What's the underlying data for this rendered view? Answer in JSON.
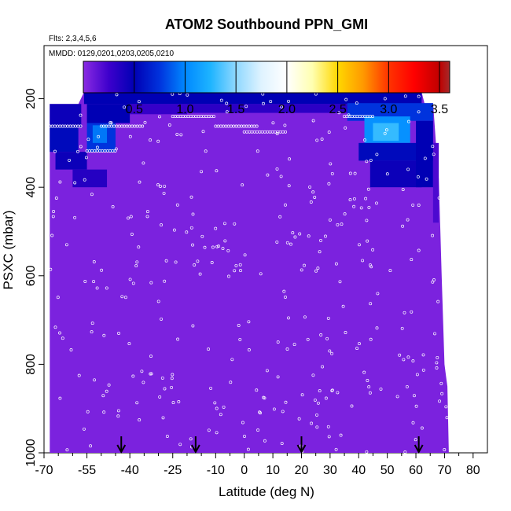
{
  "chart_data": {
    "type": "heatmap",
    "title": "ATOM2 Southbound PPN_GMI",
    "subtitle_flights": "Flts: 2,3,4,5,6",
    "subtitle_dates": "MMDD: 0129,0201,0203,0205,0210",
    "xlabel": "Latitude (deg N)",
    "ylabel": "PSXC (mbar)",
    "xlim": [
      -70,
      85
    ],
    "ylim": [
      1000,
      80
    ],
    "x_ticks": [
      -70,
      -55,
      -40,
      -25,
      -10,
      0,
      10,
      20,
      30,
      40,
      50,
      60,
      70,
      80
    ],
    "x_tick_labels": [
      "-70",
      "-55",
      "-40",
      "-25",
      "-10",
      "0",
      "10",
      "20",
      "30",
      "40",
      "50",
      "60",
      "70",
      "80"
    ],
    "x_minor_ticks": [
      -65,
      -60,
      -50,
      -45,
      -35,
      -30,
      -20,
      -15,
      -5,
      5,
      15,
      25,
      35,
      45,
      55,
      65,
      75
    ],
    "y_ticks": [
      200,
      400,
      600,
      800,
      1000
    ],
    "y_tick_labels": [
      "200",
      "400",
      "600",
      "800",
      "1000"
    ],
    "colorbar": {
      "min": 0,
      "max": 3.6,
      "ticks": [
        0.5,
        1.0,
        1.5,
        2.0,
        2.5,
        3.0,
        3.5
      ],
      "tick_labels": [
        "0.5",
        "1.0",
        "1.5",
        "2.0",
        "2.5",
        "3.0",
        "3.5"
      ],
      "stops": [
        {
          "value": 0.0,
          "color": "#8a2be2"
        },
        {
          "value": 0.25,
          "color": "#3d00cc"
        },
        {
          "value": 0.5,
          "color": "#0000b4"
        },
        {
          "value": 0.75,
          "color": "#0033dd"
        },
        {
          "value": 1.0,
          "color": "#0088ff"
        },
        {
          "value": 1.25,
          "color": "#1eb4ff"
        },
        {
          "value": 1.5,
          "color": "#8fd8ff"
        },
        {
          "value": 1.75,
          "color": "#dff3ff"
        },
        {
          "value": 2.0,
          "color": "#ffffff"
        },
        {
          "value": 2.25,
          "color": "#ffffb0"
        },
        {
          "value": 2.5,
          "color": "#ffd700"
        },
        {
          "value": 2.75,
          "color": "#ff9900"
        },
        {
          "value": 3.0,
          "color": "#ff3300"
        },
        {
          "value": 3.25,
          "color": "#ff0000"
        },
        {
          "value": 3.5,
          "color": "#c00000"
        },
        {
          "value": 3.6,
          "color": "#a52a2a"
        }
      ]
    },
    "base_value": 0.05,
    "data_top_pressure": [
      {
        "lat": -68,
        "p": 212
      },
      {
        "lat": -58,
        "p": 212
      },
      {
        "lat": -56,
        "p": 185
      },
      {
        "lat": 62,
        "p": 185
      },
      {
        "lat": 63,
        "p": 210
      },
      {
        "lat": 66,
        "p": 210
      },
      {
        "lat": 67,
        "p": 300
      },
      {
        "lat": 68,
        "p": 380
      },
      {
        "lat": 69,
        "p": 600
      },
      {
        "lat": 70,
        "p": 800
      },
      {
        "lat": 71,
        "p": 850
      },
      {
        "lat": 71.5,
        "p": 1000
      }
    ],
    "west_edge_lat": -68,
    "features": [
      {
        "lat_min": -68,
        "lat_max": -57,
        "p_min": 212,
        "p_max": 265,
        "value": 0.45
      },
      {
        "lat_min": -68,
        "lat_max": -58,
        "p_min": 265,
        "p_max": 320,
        "value": 0.55
      },
      {
        "lat_min": -66,
        "lat_max": -55,
        "p_min": 320,
        "p_max": 360,
        "value": 0.45
      },
      {
        "lat_min": -60,
        "lat_max": -48,
        "p_min": 360,
        "p_max": 400,
        "value": 0.35
      },
      {
        "lat_min": -55,
        "lat_max": -40,
        "p_min": 212,
        "p_max": 255,
        "value": 0.5
      },
      {
        "lat_min": -55,
        "lat_max": -45,
        "p_min": 255,
        "p_max": 320,
        "value": 0.75
      },
      {
        "lat_min": -53,
        "lat_max": -48,
        "p_min": 260,
        "p_max": 300,
        "value": 0.95
      },
      {
        "lat_min": -56,
        "lat_max": 62,
        "p_min": 185,
        "p_max": 212,
        "value": 0.5
      },
      {
        "lat_min": -40,
        "lat_max": -20,
        "p_min": 212,
        "p_max": 235,
        "value": 0.28
      },
      {
        "lat_min": -20,
        "lat_max": 40,
        "p_min": 212,
        "p_max": 232,
        "value": 0.32
      },
      {
        "lat_min": 36,
        "lat_max": 66,
        "p_min": 210,
        "p_max": 250,
        "value": 0.75
      },
      {
        "lat_min": 42,
        "lat_max": 58,
        "p_min": 240,
        "p_max": 300,
        "value": 1.05
      },
      {
        "lat_min": 45,
        "lat_max": 54,
        "p_min": 255,
        "p_max": 295,
        "value": 1.3
      },
      {
        "lat_min": 40,
        "lat_max": 66,
        "p_min": 300,
        "p_max": 340,
        "value": 0.55
      },
      {
        "lat_min": 44,
        "lat_max": 62,
        "p_min": 340,
        "p_max": 400,
        "value": 0.45
      },
      {
        "lat_min": 60,
        "lat_max": 66,
        "p_min": 250,
        "p_max": 400,
        "value": 0.5
      },
      {
        "lat_min": 66,
        "lat_max": 68,
        "p_min": 300,
        "p_max": 480,
        "value": 0.2
      }
    ],
    "flight_arrows_lat": [
      -43,
      -17,
      20,
      61
    ]
  }
}
